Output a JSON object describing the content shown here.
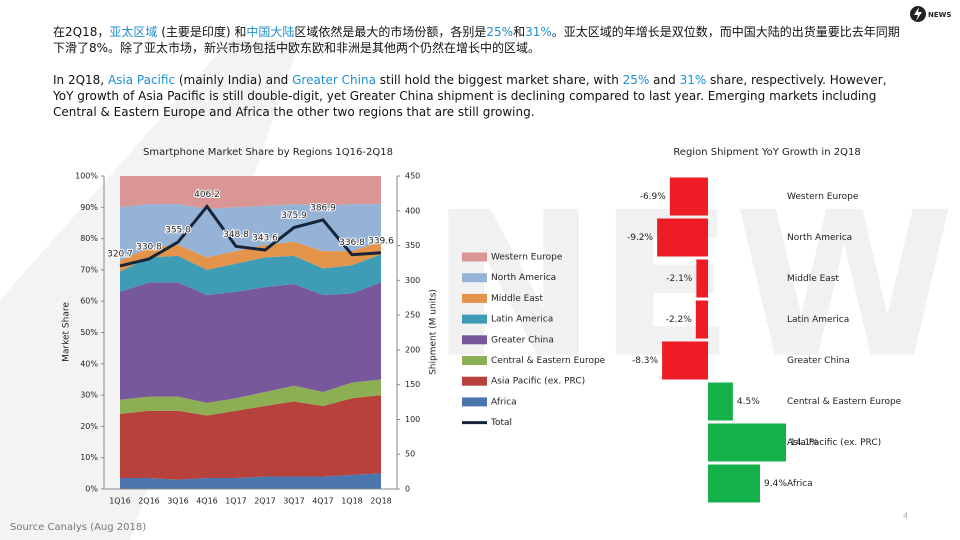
{
  "logo": "NEWS",
  "watermark": "NEWS",
  "paragraphs": [
    {
      "segments": [
        {
          "text": "在2Q18，"
        },
        {
          "text": "亚太区域",
          "highlight": true
        },
        {
          "text": " (主要是印度) 和"
        },
        {
          "text": "中国大陆",
          "highlight": true
        },
        {
          "text": "区域依然是最大的市场份额，各别是"
        },
        {
          "text": "25%",
          "highlight": true
        },
        {
          "text": "和"
        },
        {
          "text": "31%",
          "highlight": true
        },
        {
          "text": "。亚太区域的年增长是双位数，而中国大陆的出货量要比去年同期下滑了8%。除了亚太市场，新兴市场包括中欧东欧和非洲是其他两个仍然在增长中的区域。"
        }
      ]
    },
    {
      "segments": [
        {
          "text": "In 2Q18, "
        },
        {
          "text": "Asia Pacific",
          "highlight": true
        },
        {
          "text": " (mainly India) and "
        },
        {
          "text": "Greater China",
          "highlight": true
        },
        {
          "text": " still hold the biggest market share, with "
        },
        {
          "text": "25%",
          "highlight": true
        },
        {
          "text": " and "
        },
        {
          "text": "31%",
          "highlight": true
        },
        {
          "text": " share, respectively. However, YoY growth of Asia Pacific is still double-digit,  yet Greater China shipment is declining  compared to last year. Emerging markets including Central & Eastern Europe and Africa the other two regions that are still growing."
        }
      ]
    }
  ],
  "highlight_color": "#1f8fd0",
  "source": "Source Canalys (Aug 2018)",
  "page_number": "4",
  "chart_data": [
    {
      "type": "area",
      "title": "Smartphone Market Share by Regions 1Q16-2Q18",
      "y_label": "Market Share",
      "y2_label": "Shipment (M units)",
      "categories": [
        "1Q16",
        "2Q16",
        "3Q16",
        "4Q16",
        "1Q17",
        "2Q17",
        "3Q17",
        "4Q17",
        "1Q18",
        "2Q18"
      ],
      "ylim": [
        0,
        100
      ],
      "yticks": [
        {
          "value": 0,
          "label": "0%"
        },
        {
          "value": 10,
          "label": "10%"
        },
        {
          "value": 20,
          "label": "20%"
        },
        {
          "value": 30,
          "label": "30%"
        },
        {
          "value": 40,
          "label": "40%"
        },
        {
          "value": 50,
          "label": "50%"
        },
        {
          "value": 60,
          "label": "60%"
        },
        {
          "value": 70,
          "label": "70%"
        },
        {
          "value": 80,
          "label": "80%"
        },
        {
          "value": 90,
          "label": "90%"
        },
        {
          "value": 100,
          "label": "100%"
        }
      ],
      "y2lim": [
        0,
        450
      ],
      "y2ticks": [
        0,
        50,
        100,
        150,
        200,
        250,
        300,
        350,
        400,
        450
      ],
      "stacked": true,
      "series": [
        {
          "name": "Africa",
          "color": "#4a76ad",
          "values": [
            3.5,
            3.5,
            3,
            3.5,
            3.5,
            4,
            4,
            4,
            4.5,
            5
          ]
        },
        {
          "name": "Asia Pacific (ex. PRC)",
          "color": "#b7423c",
          "values": [
            20.5,
            21.5,
            22,
            20,
            21.5,
            22.5,
            24,
            22.5,
            24.5,
            25
          ]
        },
        {
          "name": "Central & Eastern Europe",
          "color": "#8daf54",
          "values": [
            4.5,
            4.5,
            4.5,
            4,
            4,
            4.5,
            5,
            4.5,
            5,
            5
          ]
        },
        {
          "name": "Greater China",
          "color": "#77599b",
          "values": [
            34.5,
            36.5,
            36.5,
            34.5,
            34,
            33.5,
            32.5,
            31,
            28.5,
            31
          ]
        },
        {
          "name": "Latin America",
          "color": "#3f9cb5",
          "values": [
            6.5,
            8,
            8.5,
            8,
            9,
            9.5,
            9,
            8.5,
            9,
            9
          ]
        },
        {
          "name": "Middle East",
          "color": "#e4944a",
          "values": [
            3.5,
            3,
            3.5,
            4,
            4,
            4,
            4.5,
            5.5,
            4.5,
            4
          ]
        },
        {
          "name": "North America",
          "color": "#95b3d7",
          "values": [
            17,
            14,
            13,
            15.5,
            14,
            12.5,
            12,
            14.5,
            15,
            12
          ]
        },
        {
          "name": "Western Europe",
          "color": "#d99694",
          "values": [
            10,
            9,
            9,
            10.5,
            10,
            9.5,
            9,
            9.5,
            9,
            9
          ]
        },
        {
          "name": "Total",
          "type": "line",
          "axis": "y2",
          "color": "#17253a",
          "values": [
            320.7,
            330.8,
            355.0,
            406.2,
            348.8,
            343.6,
            375.9,
            386.9,
            336.8,
            339.6
          ],
          "value_labels": [
            "320.7",
            "330.8",
            "355.0",
            "406.2",
            "348.8",
            "343.6",
            "375.9",
            "386.9",
            "336.8",
            "339.6"
          ]
        }
      ]
    },
    {
      "type": "bar",
      "orientation": "horizontal",
      "title": "Region Shipment YoY Growth in 2Q18",
      "categories": [
        "Western Europe",
        "North America",
        "Middle East",
        "Latin America",
        "Greater China",
        "Central & Eastern Europe",
        "Asia Pacific (ex. PRC)",
        "Africa"
      ],
      "values": [
        -6.9,
        -9.2,
        -2.1,
        -2.2,
        -8.3,
        4.5,
        14.1,
        9.4
      ],
      "value_labels": [
        "-6.9%",
        "-9.2%",
        "-2.1%",
        "-2.2%",
        "-8.3%",
        "4.5%",
        "14.1%",
        "9.4%"
      ],
      "color": "#14b04a",
      "negative_color": "#ee1c25"
    }
  ]
}
